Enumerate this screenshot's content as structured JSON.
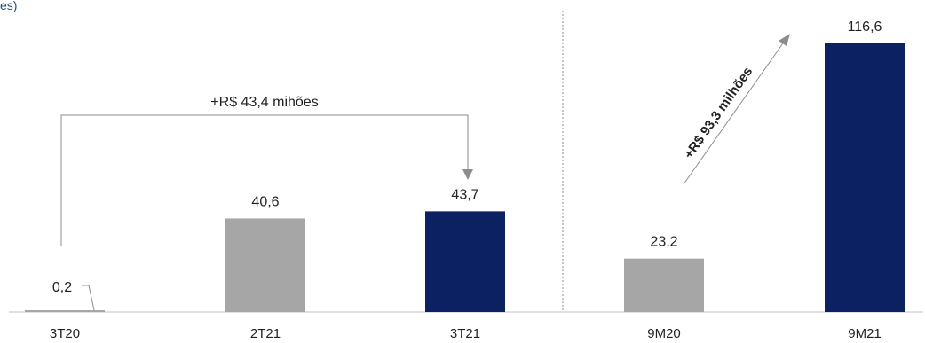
{
  "chart_data": {
    "type": "bar",
    "title": "",
    "subtitle_fragment": "es)",
    "xlabel": "",
    "ylabel": "",
    "ylim": [
      0,
      120
    ],
    "grid": false,
    "legend": "none",
    "categories": [
      "3T20",
      "2T21",
      "3T21",
      "9M20",
      "9M21"
    ],
    "values": [
      0.2,
      40.6,
      43.7,
      23.2,
      116.6
    ],
    "value_labels": [
      "0,2",
      "40,6",
      "43,7",
      "23,2",
      "116,6"
    ],
    "bar_colors": [
      "#a6a6a6",
      "#a6a6a6",
      "#0b2161",
      "#a6a6a6",
      "#0b2161"
    ],
    "annotations": {
      "quarter_delta": "+R$ 43,4 mihões",
      "ytd_delta": "+R$ 93,3 milhões"
    }
  },
  "colors": {
    "gray_bar": "#a6a6a6",
    "navy_bar": "#0b2161",
    "axis": "#c0c0c0",
    "divider": "#8c8c8c",
    "arrow": "#8c8c8c"
  }
}
